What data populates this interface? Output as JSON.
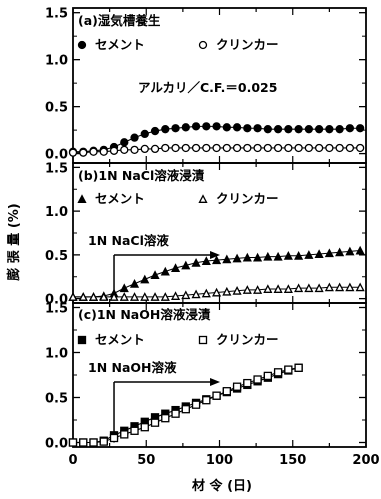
{
  "chart_data": [
    {
      "type": "line",
      "panel_label": "(a)湿気槽養生",
      "legend": [
        {
          "marker": "filled-circle",
          "label": "セメント"
        },
        {
          "marker": "open-circle",
          "label": "クリンカー"
        }
      ],
      "annotation": "アルカリ／C.F.＝0.025",
      "xlim": [
        0,
        200
      ],
      "ylim": [
        -0.1,
        1.55
      ],
      "yticks": [
        "0.0",
        "0.5",
        "1.0",
        "1.5"
      ],
      "series": [
        {
          "name": "セメント",
          "marker": "filled-circle",
          "x": [
            0,
            7,
            14,
            21,
            28,
            35,
            42,
            49,
            56,
            63,
            70,
            77,
            84,
            91,
            98,
            105,
            112,
            119,
            126,
            133,
            140,
            147,
            154,
            161,
            168,
            175,
            182,
            189,
            196
          ],
          "y": [
            0.02,
            0.02,
            0.03,
            0.04,
            0.07,
            0.12,
            0.17,
            0.21,
            0.24,
            0.26,
            0.27,
            0.28,
            0.29,
            0.29,
            0.29,
            0.28,
            0.28,
            0.27,
            0.27,
            0.26,
            0.26,
            0.26,
            0.26,
            0.26,
            0.26,
            0.26,
            0.26,
            0.27,
            0.27
          ]
        },
        {
          "name": "クリンカー",
          "marker": "open-circle",
          "x": [
            0,
            7,
            14,
            21,
            28,
            35,
            42,
            49,
            56,
            63,
            70,
            77,
            84,
            91,
            98,
            105,
            112,
            119,
            126,
            133,
            140,
            147,
            154,
            161,
            168,
            175,
            182,
            189,
            196
          ],
          "y": [
            0.01,
            0.01,
            0.02,
            0.02,
            0.03,
            0.04,
            0.04,
            0.05,
            0.05,
            0.06,
            0.06,
            0.06,
            0.06,
            0.06,
            0.06,
            0.06,
            0.06,
            0.06,
            0.06,
            0.06,
            0.06,
            0.06,
            0.06,
            0.06,
            0.06,
            0.06,
            0.06,
            0.06,
            0.06
          ]
        }
      ]
    },
    {
      "type": "line",
      "panel_label": "(b)1N NaCl溶液浸漬",
      "legend": [
        {
          "marker": "filled-triangle",
          "label": "セメント"
        },
        {
          "marker": "open-triangle",
          "label": "クリンカー"
        }
      ],
      "annotation": "1N NaCl溶液",
      "arrow_from_x": 28,
      "xlim": [
        0,
        200
      ],
      "ylim": [
        -0.05,
        1.55
      ],
      "yticks": [
        "0.0",
        "0.5",
        "1.0",
        "1.5"
      ],
      "series": [
        {
          "name": "セメント",
          "marker": "filled-triangle",
          "x": [
            0,
            7,
            14,
            21,
            28,
            35,
            42,
            49,
            56,
            63,
            70,
            77,
            84,
            91,
            98,
            105,
            112,
            119,
            126,
            133,
            140,
            147,
            154,
            161,
            168,
            175,
            182,
            189,
            196
          ],
          "y": [
            0.02,
            0.02,
            0.02,
            0.03,
            0.06,
            0.12,
            0.17,
            0.22,
            0.27,
            0.31,
            0.35,
            0.38,
            0.41,
            0.43,
            0.44,
            0.45,
            0.46,
            0.47,
            0.47,
            0.48,
            0.48,
            0.49,
            0.49,
            0.5,
            0.51,
            0.52,
            0.53,
            0.54,
            0.55
          ]
        },
        {
          "name": "クリンカー",
          "marker": "open-triangle",
          "x": [
            0,
            7,
            14,
            21,
            28,
            35,
            42,
            49,
            56,
            63,
            70,
            77,
            84,
            91,
            98,
            105,
            112,
            119,
            126,
            133,
            140,
            147,
            154,
            161,
            168,
            175,
            182,
            189,
            196
          ],
          "y": [
            0.02,
            0.02,
            0.02,
            0.02,
            0.02,
            0.02,
            0.02,
            0.02,
            0.02,
            0.02,
            0.03,
            0.04,
            0.05,
            0.06,
            0.07,
            0.08,
            0.09,
            0.1,
            0.1,
            0.11,
            0.11,
            0.11,
            0.12,
            0.12,
            0.12,
            0.13,
            0.13,
            0.13,
            0.13
          ]
        }
      ]
    },
    {
      "type": "line",
      "panel_label": "(c)1N NaOH溶液浸漬",
      "legend": [
        {
          "marker": "filled-square",
          "label": "セメント"
        },
        {
          "marker": "open-square",
          "label": "クリンカー"
        }
      ],
      "annotation": "1N NaOH溶液",
      "arrow_from_x": 28,
      "xlim": [
        0,
        200
      ],
      "ylim": [
        -0.05,
        1.55
      ],
      "yticks": [
        "0.0",
        "0.5",
        "1.0",
        "1.5"
      ],
      "xticks": [
        "0",
        "50",
        "100",
        "150",
        "200"
      ],
      "series": [
        {
          "name": "セメント",
          "marker": "filled-square",
          "x": [
            0,
            7,
            14,
            21,
            28,
            35,
            42,
            49,
            56,
            63,
            70,
            77,
            84,
            91,
            98,
            105,
            112,
            119,
            126,
            133,
            140,
            147,
            154
          ],
          "y": [
            0.0,
            0.0,
            0.0,
            0.02,
            0.08,
            0.13,
            0.18,
            0.23,
            0.28,
            0.32,
            0.36,
            0.4,
            0.44,
            0.48,
            0.52,
            0.56,
            0.6,
            0.64,
            0.68,
            0.72,
            0.76,
            0.8,
            0.83
          ]
        },
        {
          "name": "クリンカー",
          "marker": "open-square",
          "x": [
            0,
            7,
            14,
            21,
            28,
            35,
            42,
            49,
            56,
            63,
            70,
            77,
            84,
            91,
            98,
            105,
            112,
            119,
            126,
            133,
            140,
            147,
            154
          ],
          "y": [
            0.0,
            0.0,
            0.0,
            0.01,
            0.05,
            0.09,
            0.13,
            0.17,
            0.22,
            0.27,
            0.32,
            0.37,
            0.42,
            0.47,
            0.52,
            0.57,
            0.62,
            0.66,
            0.7,
            0.74,
            0.78,
            0.81,
            0.83
          ]
        }
      ]
    }
  ],
  "axes": {
    "ylabel": "膨 張 量 (%)",
    "xlabel": "材 令 (日)"
  }
}
